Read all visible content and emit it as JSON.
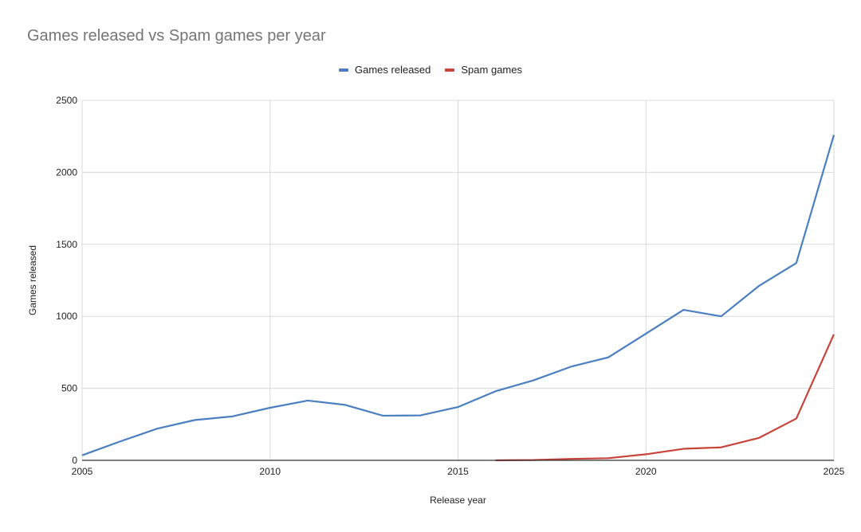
{
  "chart_data": {
    "type": "line",
    "title": "Games released vs Spam games per year",
    "xlabel": "Release year",
    "ylabel": "Games released",
    "xlim": [
      2005,
      2025
    ],
    "ylim": [
      0,
      2500
    ],
    "x_ticks": [
      "2005",
      "2010",
      "2015",
      "2020",
      "2025"
    ],
    "y_ticks": [
      "0",
      "500",
      "1000",
      "1500",
      "2000",
      "2500"
    ],
    "grid": true,
    "legend_position": "top-center",
    "series": [
      {
        "name": "Games released",
        "color": "#4a7fc1",
        "x": [
          2005,
          2006,
          2007,
          2008,
          2009,
          2010,
          2011,
          2012,
          2013,
          2014,
          2015,
          2016,
          2017,
          2018,
          2019,
          2020,
          2021,
          2022,
          2023,
          2024,
          2025
        ],
        "values": [
          35,
          130,
          220,
          280,
          305,
          365,
          415,
          385,
          310,
          312,
          370,
          480,
          555,
          650,
          715,
          880,
          1045,
          1000,
          1210,
          1370,
          2260
        ]
      },
      {
        "name": "Spam games",
        "color": "#c8443a",
        "x": [
          2016,
          2017,
          2018,
          2019,
          2020,
          2021,
          2022,
          2023,
          2024,
          2025
        ],
        "values": [
          0,
          2,
          10,
          15,
          42,
          80,
          90,
          155,
          290,
          875
        ]
      }
    ]
  }
}
